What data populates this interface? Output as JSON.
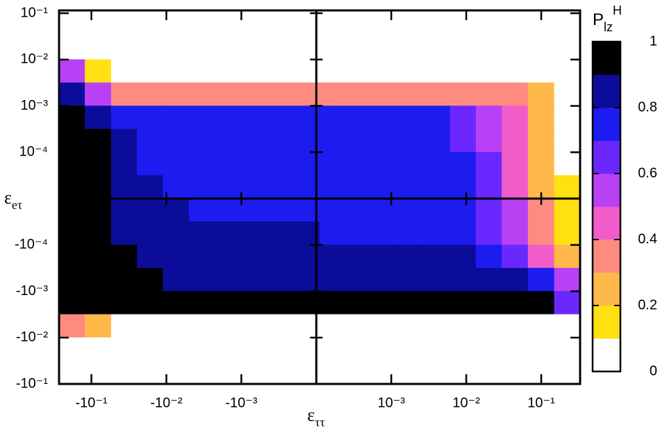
{
  "chart_data": {
    "type": "heatmap",
    "x_label": {
      "text": "ε",
      "sub": "ττ"
    },
    "y_label": {
      "text": "ε",
      "sub": "eτ"
    },
    "xscale": "symlog",
    "xlinthresh": 0.001,
    "yscale": "symlog",
    "ylinthresh": 0.0001,
    "xlim": [
      -0.27,
      0.33
    ],
    "ylim": [
      -0.1,
      0.115
    ],
    "xticks": [
      {
        "value": -0.1,
        "label": "-10⁻¹"
      },
      {
        "value": -0.01,
        "label": "-10⁻²"
      },
      {
        "value": -0.001,
        "label": "-10⁻³"
      },
      {
        "value": 0.001,
        "label": "10⁻³"
      },
      {
        "value": 0.01,
        "label": "10⁻²"
      },
      {
        "value": 0.1,
        "label": "10⁻¹"
      }
    ],
    "yticks": [
      {
        "value": 0.1,
        "label": "10⁻¹"
      },
      {
        "value": 0.01,
        "label": "10⁻²"
      },
      {
        "value": 0.001,
        "label": "10⁻³"
      },
      {
        "value": 0.0001,
        "label": "10⁻⁴"
      },
      {
        "value": -0.0001,
        "label": "-10⁻⁴"
      },
      {
        "value": -0.001,
        "label": "-10⁻³"
      },
      {
        "value": -0.01,
        "label": "-10⁻²"
      },
      {
        "value": -0.1,
        "label": "-10⁻¹"
      }
    ],
    "x": [
      -0.182,
      -0.0813,
      -0.0363,
      -0.0166,
      -0.00741,
      -0.00331,
      -0.00148,
      -0.00083,
      -0.00048,
      -0.00013,
      0.00022,
      0.00056,
      0.00091,
      0.00182,
      0.00407,
      0.00912,
      0.02,
      0.0447,
      0.1,
      0.224
    ],
    "y": [
      0.0562,
      0.0178,
      0.00562,
      0.00178,
      0.000562,
      0.000178,
      7.5e-05,
      2.5e-05,
      -2.5e-05,
      -7.5e-05,
      -0.000178,
      -0.000562,
      -0.00178,
      -0.00562,
      -0.0178,
      -0.0562
    ],
    "z": [
      [
        0,
        0,
        0,
        0,
        0,
        0,
        0,
        0,
        0,
        0,
        0,
        0,
        0,
        0,
        0,
        0,
        0,
        0,
        0,
        0
      ],
      [
        0,
        0,
        0,
        0,
        0,
        0,
        0,
        0,
        0,
        0,
        0,
        0,
        0,
        0,
        0,
        0,
        0,
        0,
        0,
        0
      ],
      [
        0.5,
        0.15,
        0.05,
        0.05,
        0.05,
        0.05,
        0.05,
        0.05,
        0.05,
        0.05,
        0.05,
        0.05,
        0.05,
        0.05,
        0.05,
        0.05,
        0.05,
        0,
        0,
        0
      ],
      [
        0.85,
        0.55,
        0.35,
        0.35,
        0.35,
        0.35,
        0.35,
        0.35,
        0.35,
        0.35,
        0.35,
        0.35,
        0.35,
        0.35,
        0.35,
        0.35,
        0.35,
        0.3,
        0.2,
        0
      ],
      [
        0.95,
        0.85,
        0.75,
        0.72,
        0.72,
        0.72,
        0.72,
        0.72,
        0.72,
        0.72,
        0.7,
        0.7,
        0.7,
        0.7,
        0.7,
        0.65,
        0.55,
        0.4,
        0.2,
        0.02
      ],
      [
        0.95,
        0.9,
        0.8,
        0.76,
        0.74,
        0.74,
        0.74,
        0.74,
        0.74,
        0.74,
        0.72,
        0.72,
        0.72,
        0.72,
        0.72,
        0.68,
        0.58,
        0.42,
        0.22,
        0.05
      ],
      [
        0.96,
        0.9,
        0.82,
        0.78,
        0.76,
        0.76,
        0.76,
        0.76,
        0.76,
        0.76,
        0.74,
        0.74,
        0.74,
        0.74,
        0.74,
        0.7,
        0.6,
        0.45,
        0.25,
        0.08
      ],
      [
        0.96,
        0.91,
        0.84,
        0.8,
        0.78,
        0.77,
        0.77,
        0.77,
        0.77,
        0.77,
        0.75,
        0.75,
        0.75,
        0.75,
        0.75,
        0.72,
        0.62,
        0.48,
        0.28,
        0.1
      ],
      [
        0.96,
        0.92,
        0.86,
        0.82,
        0.8,
        0.78,
        0.78,
        0.78,
        0.78,
        0.78,
        0.76,
        0.76,
        0.76,
        0.76,
        0.76,
        0.73,
        0.64,
        0.5,
        0.3,
        0.12
      ],
      [
        0.96,
        0.92,
        0.88,
        0.85,
        0.82,
        0.8,
        0.8,
        0.8,
        0.8,
        0.8,
        0.78,
        0.78,
        0.78,
        0.78,
        0.78,
        0.75,
        0.68,
        0.55,
        0.35,
        0.15
      ],
      [
        0.97,
        0.93,
        0.9,
        0.87,
        0.85,
        0.83,
        0.83,
        0.83,
        0.83,
        0.83,
        0.82,
        0.82,
        0.82,
        0.82,
        0.82,
        0.8,
        0.75,
        0.65,
        0.45,
        0.25
      ],
      [
        0.97,
        0.95,
        0.92,
        0.9,
        0.88,
        0.88,
        0.88,
        0.88,
        0.88,
        0.88,
        0.87,
        0.87,
        0.87,
        0.87,
        0.87,
        0.86,
        0.84,
        0.8,
        0.7,
        0.5
      ],
      [
        0.95,
        0.95,
        0.95,
        0.95,
        0.95,
        0.95,
        0.95,
        0.95,
        0.95,
        0.95,
        0.95,
        0.95,
        0.95,
        0.95,
        0.95,
        0.95,
        0.95,
        0.93,
        0.9,
        0.6
      ],
      [
        0.3,
        0.2,
        0.08,
        0.08,
        0.08,
        0.08,
        0.08,
        0.08,
        0.08,
        0.08,
        0.08,
        0.08,
        0.08,
        0.08,
        0.08,
        0.08,
        0.08,
        0.08,
        0.05,
        0
      ],
      [
        0,
        0,
        0,
        0,
        0,
        0,
        0,
        0,
        0,
        0,
        0,
        0,
        0,
        0,
        0,
        0,
        0,
        0,
        0,
        0
      ],
      [
        0,
        0,
        0,
        0,
        0,
        0,
        0,
        0,
        0,
        0,
        0,
        0,
        0,
        0,
        0,
        0,
        0,
        0,
        0,
        0
      ]
    ],
    "colorbar": {
      "title": {
        "text": "P",
        "sub": "lz",
        "sup": "H"
      },
      "levels": [
        0,
        0.1,
        0.2,
        0.3,
        0.4,
        0.5,
        0.6,
        0.7,
        0.8,
        0.9,
        1
      ],
      "colors": [
        "#ffffff",
        "#ffe010",
        "#ffb84a",
        "#ff8a80",
        "#f25cc8",
        "#b840f5",
        "#6a28ff",
        "#1c1cf0",
        "#0c0c9a",
        "#000000"
      ],
      "ticks": [
        0,
        0.2,
        0.4,
        0.6,
        0.8,
        1
      ]
    }
  }
}
